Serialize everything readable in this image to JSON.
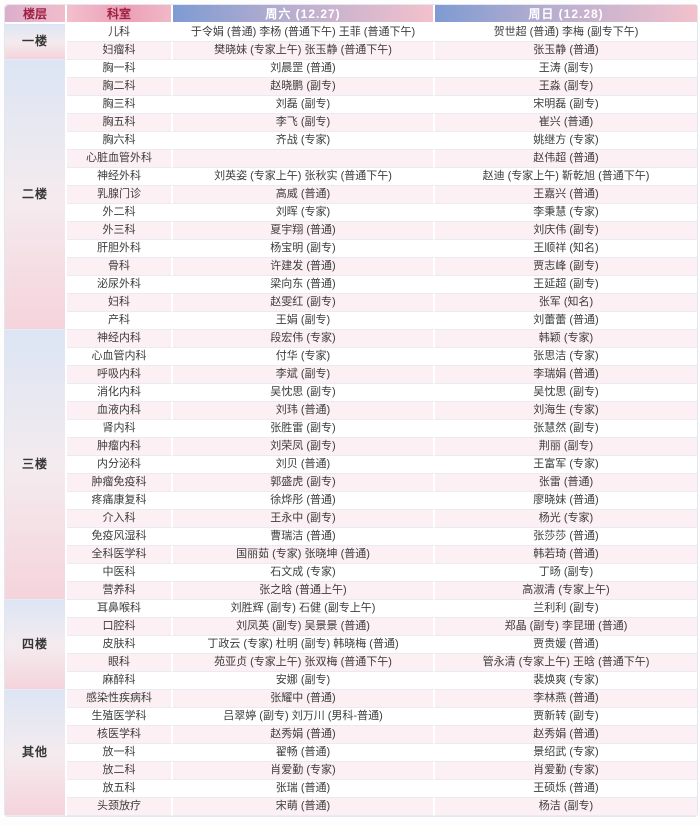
{
  "header": {
    "floor": "楼层",
    "dept": "科室",
    "saturday": "周六 (12.27)",
    "sunday": "周日 (12.28)"
  },
  "colors": {
    "header_text_red": "#9e2242",
    "day_header_gradient_start": "#7e9bd2",
    "day_header_gradient_end": "#f3c1cc",
    "row_stripe_pink": "#fcf0f4",
    "floor_cell_gradient_top": "#dce5f4",
    "floor_cell_gradient_bottom": "#f5d3dc"
  },
  "floors": [
    {
      "name": "一楼",
      "rows": [
        {
          "dept": "儿科",
          "sat": "于令娟 (普通) 李杨 (普通下午) 王菲 (普通下午)",
          "sun": "贺世超 (普通) 李梅 (副专下午)"
        },
        {
          "dept": "妇瘤科",
          "sat": "樊晓妹 (专家上午) 张玉静 (普通下午)",
          "sun": "张玉静 (普通)"
        }
      ]
    },
    {
      "name": "二楼",
      "rows": [
        {
          "dept": "胸一科",
          "sat": "刘晨罡 (普通)",
          "sun": "王涛 (副专)"
        },
        {
          "dept": "胸二科",
          "sat": "赵晓鹏 (副专)",
          "sun": "王淼 (副专)"
        },
        {
          "dept": "胸三科",
          "sat": "刘磊 (副专)",
          "sun": "宋明磊 (副专)"
        },
        {
          "dept": "胸五科",
          "sat": "李飞 (副专)",
          "sun": "崔兴 (普通)"
        },
        {
          "dept": "胸六科",
          "sat": "齐战 (专家)",
          "sun": "姚继方 (专家)"
        },
        {
          "dept": "心脏血管外科",
          "sat": "",
          "sun": "赵伟超 (普通)"
        },
        {
          "dept": "神经外科",
          "sat": "刘英姿 (专家上午) 张秋实 (普通下午)",
          "sun": "赵迪 (专家上午) 靳乾旭 (普通下午)"
        },
        {
          "dept": "乳腺门诊",
          "sat": "高威 (普通)",
          "sun": "王嘉兴 (普通)"
        },
        {
          "dept": "外二科",
          "sat": "刘晖 (专家)",
          "sun": "李秉慧 (专家)"
        },
        {
          "dept": "外三科",
          "sat": "夏宇翔 (普通)",
          "sun": "刘庆伟 (副专)"
        },
        {
          "dept": "肝胆外科",
          "sat": "杨宝明 (副专)",
          "sun": "王顺祥 (知名)"
        },
        {
          "dept": "骨科",
          "sat": "许建发 (普通)",
          "sun": "贾志峰 (副专)"
        },
        {
          "dept": "泌尿外科",
          "sat": "梁向东 (普通)",
          "sun": "王延超 (副专)"
        },
        {
          "dept": "妇科",
          "sat": "赵雯红 (副专)",
          "sun": "张军 (知名)"
        },
        {
          "dept": "产科",
          "sat": "王娟 (副专)",
          "sun": "刘蕾蕾 (普通)"
        }
      ]
    },
    {
      "name": "三楼",
      "rows": [
        {
          "dept": "神经内科",
          "sat": "段宏伟 (专家)",
          "sun": "韩颖 (专家)"
        },
        {
          "dept": "心血管内科",
          "sat": "付华 (专家)",
          "sun": "张思洁 (专家)"
        },
        {
          "dept": "呼吸内科",
          "sat": "李斌 (副专)",
          "sun": "李瑞娟 (普通)"
        },
        {
          "dept": "消化内科",
          "sat": "吴忱思 (副专)",
          "sun": "吴忱思 (副专)"
        },
        {
          "dept": "血液内科",
          "sat": "刘玮 (普通)",
          "sun": "刘海生 (专家)"
        },
        {
          "dept": "肾内科",
          "sat": "张胜雷 (副专)",
          "sun": "张慧然 (副专)"
        },
        {
          "dept": "肿瘤内科",
          "sat": "刘荣凤 (副专)",
          "sun": "荆丽 (副专)"
        },
        {
          "dept": "内分泌科",
          "sat": "刘贝 (普通)",
          "sun": "王富军 (专家)"
        },
        {
          "dept": "肿瘤免疫科",
          "sat": "郭盛虎 (副专)",
          "sun": "张雷 (普通)"
        },
        {
          "dept": "疼痛康复科",
          "sat": "徐烨彤 (普通)",
          "sun": "廖晓妹 (普通)"
        },
        {
          "dept": "介入科",
          "sat": "王永中 (副专)",
          "sun": "杨光 (专家)"
        },
        {
          "dept": "免疫风湿科",
          "sat": "曹瑞洁 (普通)",
          "sun": "张莎莎 (普通)"
        },
        {
          "dept": "全科医学科",
          "sat": "国丽茹 (专家) 张晓坤 (普通)",
          "sun": "韩若琦 (普通)"
        },
        {
          "dept": "中医科",
          "sat": "石文成 (专家)",
          "sun": "丁旸 (副专)"
        },
        {
          "dept": "营养科",
          "sat": "张之晗 (普通上午)",
          "sun": "高淑清 (专家上午)"
        }
      ]
    },
    {
      "name": "四楼",
      "rows": [
        {
          "dept": "耳鼻喉科",
          "sat": "刘胜辉 (副专) 石健 (副专上午)",
          "sun": "兰利利 (副专)"
        },
        {
          "dept": "口腔科",
          "sat": "刘凤英 (副专) 吴景景 (普通)",
          "sun": "郑晶 (副专) 李昆珊 (普通)"
        },
        {
          "dept": "皮肤科",
          "sat": "丁政云 (专家) 杜明 (副专) 韩晓梅 (普通)",
          "sun": "贾贵媛 (普通)"
        },
        {
          "dept": "眼科",
          "sat": "苑亚贞 (专家上午) 张双梅 (普通下午)",
          "sun": "管永清 (专家上午) 王晗 (普通下午)"
        },
        {
          "dept": "麻醉科",
          "sat": "安娜 (副专)",
          "sun": "裴焕爽 (专家)"
        }
      ]
    },
    {
      "name": "其他",
      "rows": [
        {
          "dept": "感染性疾病科",
          "sat": "张耀中 (普通)",
          "sun": "李林燕 (普通)"
        },
        {
          "dept": "生殖医学科",
          "sat": "吕翠婷 (副专) 刘万川 (男科-普通)",
          "sun": "贾新转 (副专)"
        },
        {
          "dept": "核医学科",
          "sat": "赵秀娟 (普通)",
          "sun": "赵秀娟 (普通)"
        },
        {
          "dept": "放一科",
          "sat": "翟畅 (普通)",
          "sun": "景绍武 (专家)"
        },
        {
          "dept": "放二科",
          "sat": "肖爱勤 (专家)",
          "sun": "肖爱勤 (专家)"
        },
        {
          "dept": "放五科",
          "sat": "张瑞 (普通)",
          "sun": "王硕烁 (普通)"
        },
        {
          "dept": "头颈放疗",
          "sat": "宋萌 (普通)",
          "sun": "杨洁 (副专)"
        }
      ]
    }
  ]
}
